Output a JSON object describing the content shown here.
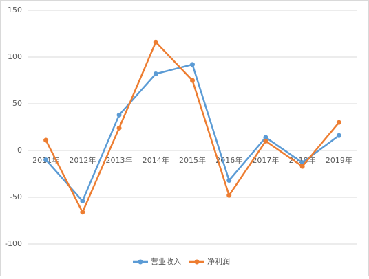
{
  "chart_data": {
    "type": "line",
    "categories": [
      "2011年",
      "2012年",
      "2013年",
      "2014年",
      "2015年",
      "2016年",
      "2017年",
      "2018年",
      "2019年"
    ],
    "series": [
      {
        "name": "营业收入",
        "color": "#5b9bd5",
        "values": [
          -10,
          -54,
          38,
          82,
          92,
          -32,
          14,
          -13,
          16
        ]
      },
      {
        "name": "净利润",
        "color": "#ed7d31",
        "values": [
          11,
          -66,
          24,
          116,
          75,
          -48,
          10,
          -17,
          30
        ]
      }
    ],
    "ylim": [
      -100,
      150
    ],
    "yticks": [
      -100,
      -50,
      0,
      50,
      100,
      150
    ],
    "grid": true,
    "legend": "bottom"
  }
}
